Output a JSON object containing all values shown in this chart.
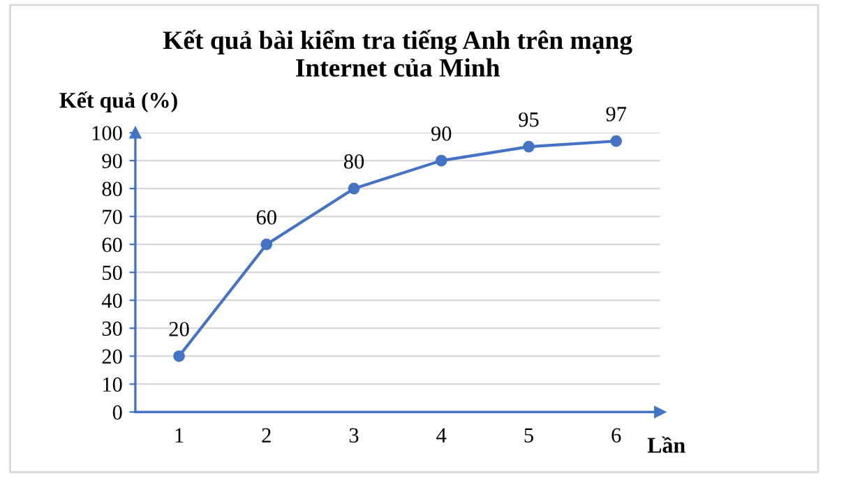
{
  "chart_data": {
    "type": "line",
    "title": "Kết quả bài kiểm tra tiếng Anh trên mạng\nInternet của Minh",
    "ylabel": "Kết quả (%)",
    "xlabel": "Lần",
    "categories": [
      "1",
      "2",
      "3",
      "4",
      "5",
      "6"
    ],
    "series": [
      {
        "color": "#4472c4",
        "values": [
          20,
          60,
          80,
          90,
          95,
          97
        ]
      }
    ],
    "ylim": [
      0,
      100
    ],
    "yticks": [
      0,
      10,
      20,
      30,
      40,
      50,
      60,
      70,
      80,
      90,
      100
    ],
    "grid": "y",
    "marker": "circle",
    "line_style": "solid",
    "data_labels": true
  }
}
